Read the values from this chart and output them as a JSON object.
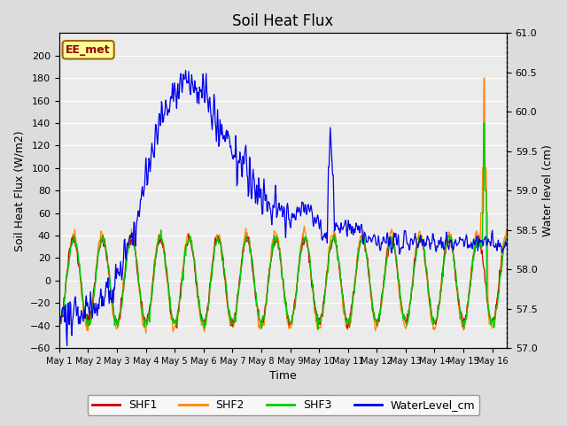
{
  "title": "Soil Heat Flux",
  "ylabel_left": "Soil Heat Flux (W/m2)",
  "ylabel_right": "Water level (cm)",
  "xlabel": "Time",
  "ylim_left": [
    -60,
    220
  ],
  "ylim_right": [
    57.0,
    61.0
  ],
  "yticks_left": [
    -60,
    -40,
    -20,
    0,
    20,
    40,
    60,
    80,
    100,
    120,
    140,
    160,
    180,
    200
  ],
  "yticks_right": [
    57.0,
    57.5,
    58.0,
    58.5,
    59.0,
    59.5,
    60.0,
    60.5,
    61.0
  ],
  "xtick_labels": [
    "May 1",
    "May 2",
    "May 3",
    "May 4",
    "May 5",
    "May 6",
    "May 7",
    "May 8",
    "May 9",
    "May 10",
    "May 11",
    "May 12",
    "May 13",
    "May 14",
    "May 15",
    "May 16"
  ],
  "background_color": "#dcdcdc",
  "plot_bg_color": "#ebebeb",
  "colors": {
    "SHF1": "#cc0000",
    "SHF2": "#ff8800",
    "SHF3": "#00cc00",
    "WaterLevel_cm": "#0000ee"
  },
  "annotation_text": "EE_met",
  "annotation_color": "#990000",
  "annotation_bg": "#ffff99",
  "annotation_border": "#996600",
  "legend_line_colors": [
    "#cc0000",
    "#ff8800",
    "#00cc00",
    "#0000ee"
  ],
  "legend_labels": [
    "SHF1",
    "SHF2",
    "SHF3",
    "WaterLevel_cm"
  ]
}
